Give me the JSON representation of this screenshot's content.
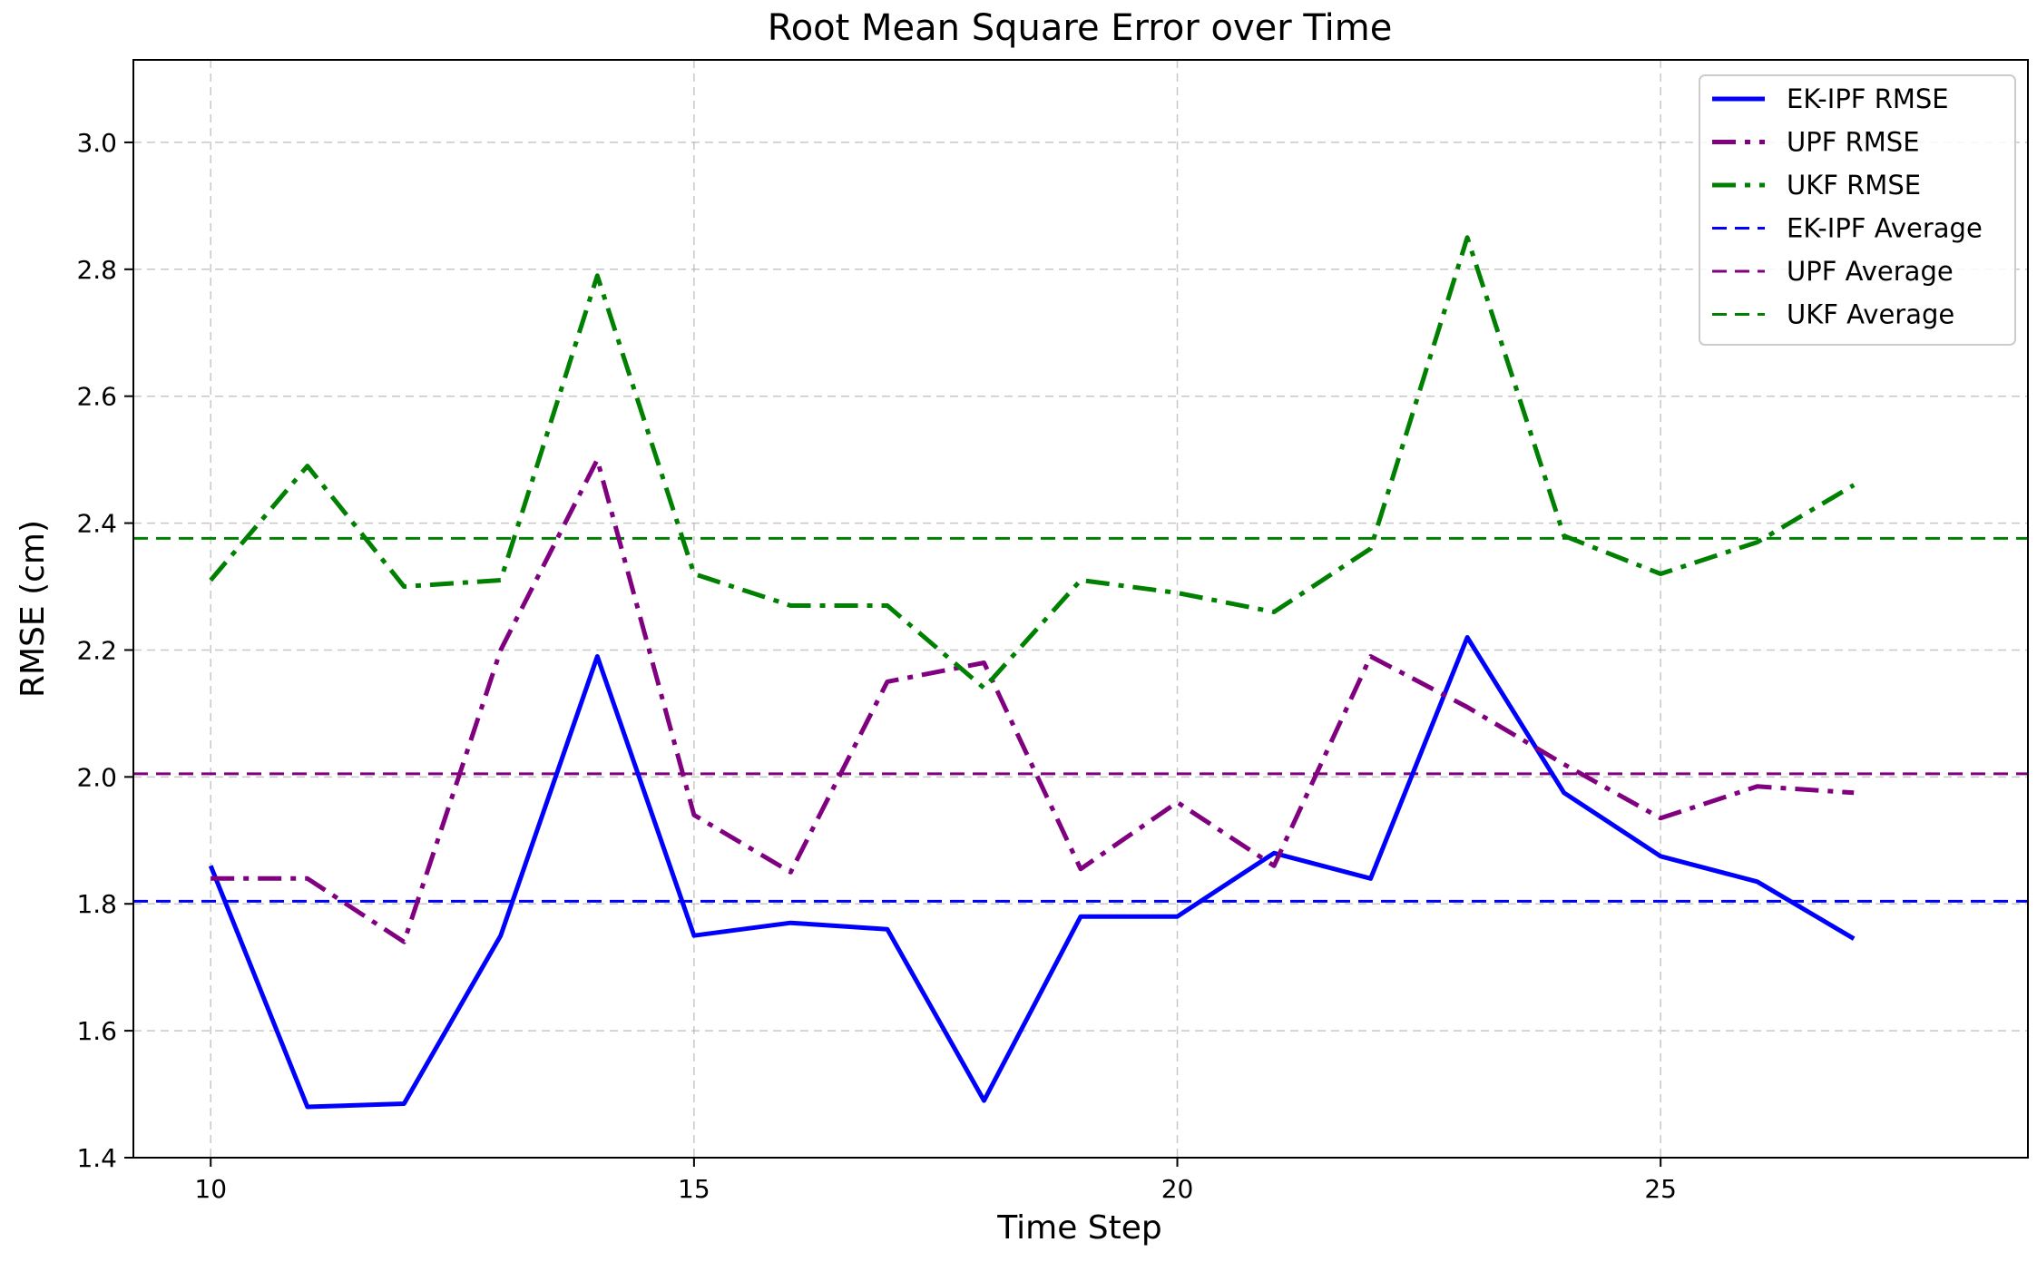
{
  "chart_data": {
    "type": "line",
    "title": "Root Mean Square Error over Time",
    "xlabel": "Time Step",
    "ylabel": "RMSE (cm)",
    "xlim": [
      9.2,
      28.8
    ],
    "ylim": [
      1.4,
      3.13
    ],
    "xticks": [
      10,
      15,
      20,
      25
    ],
    "yticks": [
      1.4,
      1.6,
      1.8,
      2.0,
      2.2,
      2.4,
      2.6,
      2.8,
      3.0
    ],
    "ytick_labels": [
      "1.4",
      "1.6",
      "1.8",
      "2.0",
      "2.2",
      "2.4",
      "2.6",
      "2.8",
      "3.0"
    ],
    "grid": true,
    "legend_position": "top-right",
    "x": [
      10,
      11,
      12,
      13,
      14,
      15,
      16,
      17,
      18,
      19,
      20,
      21,
      22,
      23,
      24,
      25,
      26,
      27
    ],
    "series": [
      {
        "name": "EK-IPF RMSE",
        "color": "#0000ff",
        "style": "solid",
        "values": [
          1.86,
          1.48,
          1.485,
          1.75,
          2.19,
          1.75,
          1.77,
          1.76,
          1.49,
          1.78,
          1.78,
          1.88,
          1.84,
          2.22,
          1.975,
          1.875,
          1.835,
          1.745
        ]
      },
      {
        "name": "UPF RMSE",
        "color": "#800080",
        "style": "dashdot",
        "values": [
          1.84,
          1.84,
          1.74,
          2.2,
          2.5,
          1.94,
          1.85,
          2.15,
          2.18,
          1.855,
          1.96,
          1.86,
          2.19,
          2.11,
          2.02,
          1.935,
          1.985,
          1.975
        ]
      },
      {
        "name": "UKF RMSE",
        "color": "#008000",
        "style": "dashdot",
        "values": [
          2.31,
          2.49,
          2.3,
          2.31,
          2.79,
          2.32,
          2.27,
          2.27,
          2.14,
          2.31,
          2.29,
          2.26,
          2.36,
          2.85,
          2.38,
          2.32,
          2.37,
          2.46
        ]
      }
    ],
    "averages": [
      {
        "name": "EK-IPF Average",
        "color": "#0000ff",
        "value": 1.804
      },
      {
        "name": "UPF Average",
        "color": "#800080",
        "value": 2.005
      },
      {
        "name": "UKF Average",
        "color": "#008000",
        "value": 2.376
      }
    ]
  }
}
